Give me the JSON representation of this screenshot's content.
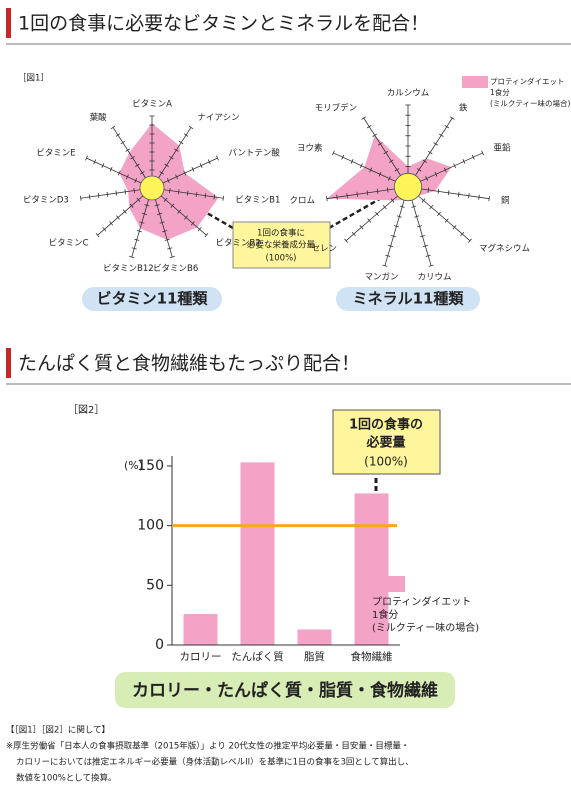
{
  "header1": "1回の食事に必要なビタミンとミネラルを配合！",
  "fig1_label": "［図1］",
  "callout1": [
    "1回の食事に",
    "必要な栄養成分量",
    "(100%)"
  ],
  "header2": "たんぱく質と食物繊維もたっぷり配合！",
  "fig2_label": "［図2］",
  "footnote": [
    "【［図1］［図2］に関して】",
    "※厚生労働省「日本人の食事摂取基準（2015年版）」より 20代女性の推定平均必要量・目安量・目標量・",
    "カロリーにおいては推定エネルギー必要量（身体活動レベルII）を基準に1日の食事を3回として算出し、",
    "数値を100%として換算。"
  ],
  "chart_data": [
    {
      "type": "radar",
      "label": "ビタミン11種類",
      "categories": [
        "ビタミンA",
        "ナイアシン",
        "パントテン酸",
        "ビタミンB1",
        "ビタミンB2",
        "ビタミンB6",
        "ビタミンB12",
        "ビタミンC",
        "ビタミンD3",
        "ビタミンE",
        "葉酸"
      ],
      "values": [
        540,
        420,
        300,
        560,
        500,
        450,
        350,
        250,
        200,
        300,
        350
      ],
      "color": "#f2a3c6",
      "rlim": [
        0,
        600
      ],
      "reference": 100,
      "reference_color": "#fff35a",
      "legend_lines": [
        "プロティンダイエット",
        "1食分",
        "(ミルクティー味の場合)"
      ]
    },
    {
      "type": "radar",
      "label": "ミネラル11種類",
      "categories": [
        "カルシウム",
        "鉄",
        "亜鉛",
        "銅",
        "マグネシウム",
        "カリウム",
        "マンガン",
        "セレン",
        "クロム",
        "ヨウ素",
        "モリブデン"
      ],
      "values": [
        150,
        250,
        350,
        200,
        100,
        80,
        100,
        150,
        600,
        350,
        450
      ],
      "color": "#f2a3c6",
      "rlim": [
        0,
        600
      ],
      "reference": 100,
      "reference_color": "#fff35a"
    },
    {
      "type": "bar",
      "categories": [
        "カロリー",
        "たんぱく質",
        "脂質",
        "食物繊維"
      ],
      "values": [
        26,
        153,
        13,
        127
      ],
      "color": "#f2a3c6",
      "ylim": [
        0,
        155
      ],
      "yticks": [
        0,
        50,
        100,
        150
      ],
      "y_label": "(%)",
      "reference_line": 100,
      "reference_color": "#f5a623",
      "legend_lines": [
        "プロティンダイエット",
        "1食分",
        "(ミルクティー味の場合)"
      ],
      "callout": [
        "1回の食事の",
        "必要量",
        "(100%)"
      ],
      "banner": "カロリー・たんぱく質・脂質・食物繊維"
    }
  ]
}
